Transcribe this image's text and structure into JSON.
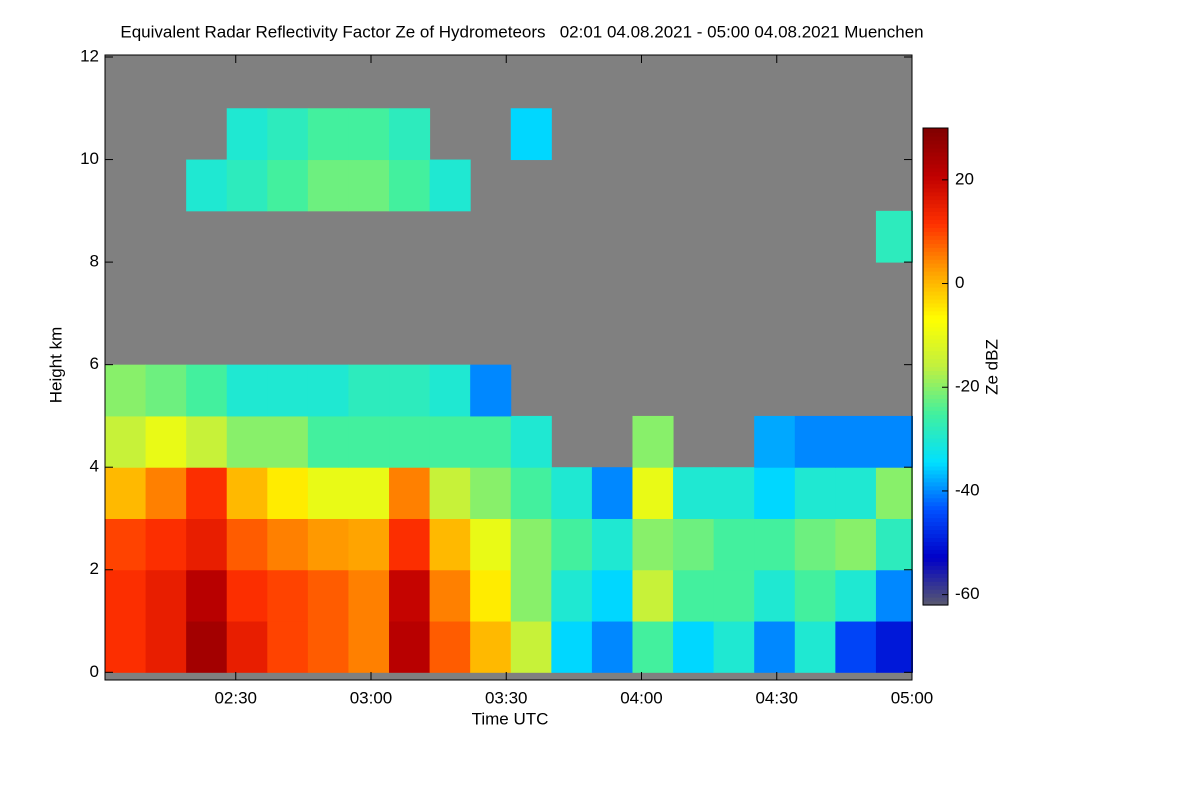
{
  "chart_data": {
    "type": "heatmap",
    "title": "Equivalent Radar Reflectivity Factor Ze of Hydrometeors   02:01 04.08.2021 - 05:00 04.08.2021 Muenchen",
    "xlabel": "Time UTC",
    "ylabel": "Height km",
    "colorbar_label": "Ze dBZ",
    "xlim": [
      121,
      300
    ],
    "xticks": [
      {
        "value": 150,
        "label": "02:30"
      },
      {
        "value": 180,
        "label": "03:00"
      },
      {
        "value": 210,
        "label": "03:30"
      },
      {
        "value": 240,
        "label": "04:00"
      },
      {
        "value": 270,
        "label": "04:30"
      },
      {
        "value": 300,
        "label": "05:00"
      }
    ],
    "ylim": [
      -0.15,
      12
    ],
    "yticks": [
      0,
      2,
      4,
      6,
      8,
      10,
      12
    ],
    "zlim": [
      -62,
      30
    ],
    "zticks": [
      -60,
      -40,
      -20,
      0,
      20
    ],
    "missing_color": "#808080",
    "colormap": [
      "#5a5a6e",
      "#0000c8",
      "#0050ff",
      "#00e0ff",
      "#40f0a0",
      "#c0f040",
      "#ffff00",
      "#ffa000",
      "#ff3000",
      "#c00000",
      "#800000"
    ],
    "x": [
      125.5,
      134.5,
      143.5,
      152.5,
      161.5,
      170.5,
      179.5,
      188.5,
      197.5,
      206.5,
      215.5,
      224.5,
      233.5,
      242.5,
      251.5,
      260.5,
      269.5,
      278.5,
      287.5,
      296.5
    ],
    "y": [
      0.5,
      1.5,
      2.5,
      3.5,
      4.5,
      5.5,
      6.5,
      7.5,
      8.5,
      9.5,
      10.5,
      11.5
    ],
    "z": [
      [
        12,
        15,
        25,
        15,
        10,
        8,
        5,
        22,
        8,
        0,
        -15,
        -35,
        -40,
        -25,
        -35,
        -30,
        -40,
        -30,
        -45,
        -50
      ],
      [
        12,
        15,
        22,
        12,
        10,
        8,
        5,
        20,
        5,
        -5,
        -20,
        -30,
        -35,
        -15,
        -25,
        -25,
        -30,
        -25,
        -30,
        -40
      ],
      [
        10,
        12,
        15,
        8,
        5,
        3,
        2,
        12,
        0,
        -10,
        -20,
        -25,
        -30,
        -20,
        -22,
        -25,
        -25,
        -22,
        -20,
        -28
      ],
      [
        0,
        5,
        12,
        0,
        -5,
        -10,
        -10,
        5,
        -15,
        -20,
        -25,
        -30,
        -40,
        -10,
        -30,
        -30,
        -35,
        -30,
        -30,
        -20
      ],
      [
        -15,
        -10,
        -15,
        -20,
        -20,
        -25,
        -25,
        -25,
        -25,
        -25,
        -30,
        null,
        null,
        -20,
        null,
        null,
        -38,
        -40,
        -40,
        -40
      ],
      [
        -20,
        -22,
        -25,
        -30,
        -30,
        -30,
        -28,
        -28,
        -30,
        -40,
        null,
        null,
        null,
        null,
        null,
        null,
        null,
        null,
        null,
        null
      ],
      [
        null,
        null,
        null,
        null,
        null,
        null,
        null,
        null,
        null,
        null,
        null,
        null,
        null,
        null,
        null,
        null,
        null,
        null,
        null,
        null
      ],
      [
        null,
        null,
        null,
        null,
        null,
        null,
        null,
        null,
        null,
        null,
        null,
        null,
        null,
        null,
        null,
        null,
        null,
        null,
        null,
        null
      ],
      [
        null,
        null,
        null,
        null,
        null,
        null,
        null,
        null,
        null,
        null,
        null,
        null,
        null,
        null,
        null,
        null,
        null,
        null,
        null,
        -28
      ],
      [
        null,
        null,
        -30,
        -28,
        -25,
        -22,
        -22,
        -25,
        -30,
        null,
        null,
        null,
        null,
        null,
        null,
        null,
        null,
        null,
        null,
        null
      ],
      [
        null,
        null,
        null,
        -30,
        -28,
        -25,
        -25,
        -28,
        null,
        null,
        -35,
        null,
        null,
        null,
        null,
        null,
        null,
        null,
        null,
        null
      ],
      [
        null,
        null,
        null,
        null,
        null,
        null,
        null,
        null,
        null,
        null,
        null,
        null,
        null,
        null,
        null,
        null,
        null,
        null,
        null,
        null
      ]
    ]
  }
}
